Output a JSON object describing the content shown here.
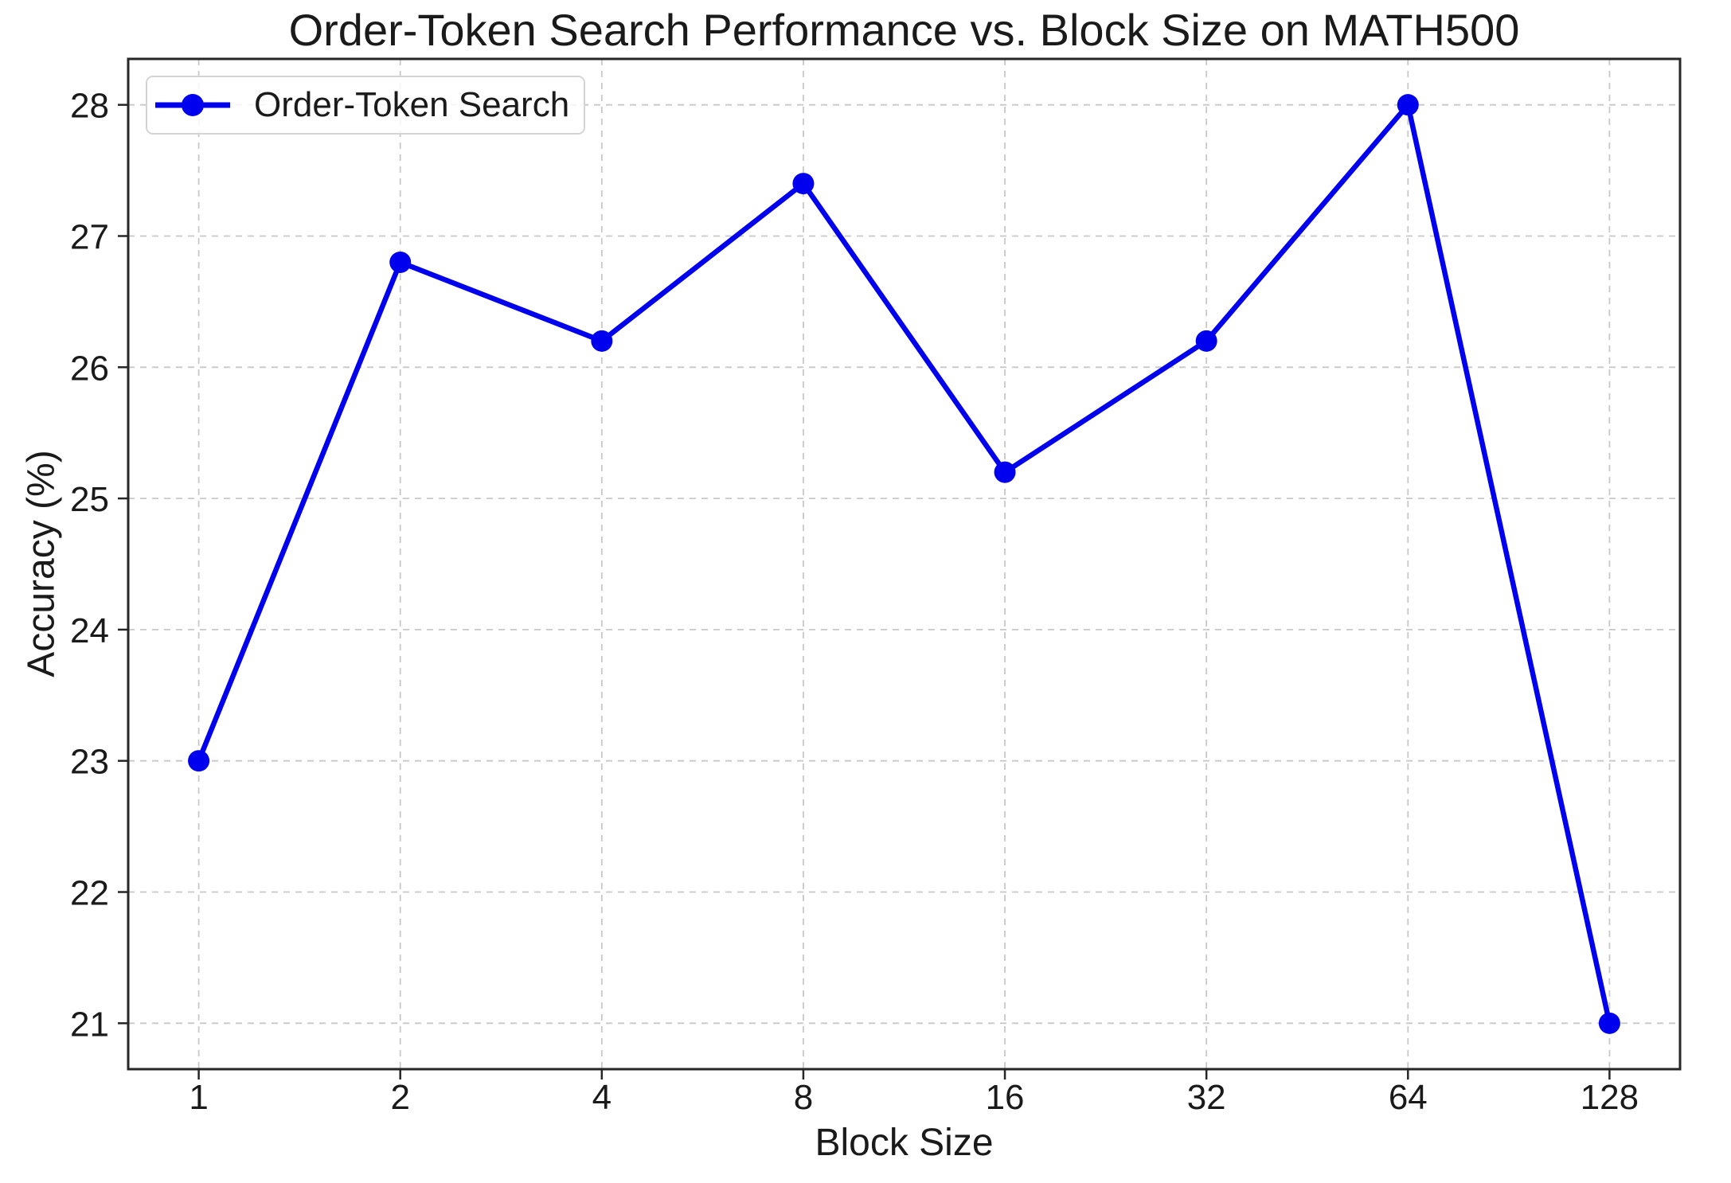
{
  "chart_data": {
    "type": "line",
    "title": "Order-Token Search Performance vs. Block Size on MATH500",
    "xlabel": "Block Size",
    "ylabel": "Accuracy (%)",
    "x_scale": "log2",
    "x": [
      1,
      2,
      4,
      8,
      16,
      32,
      64,
      128
    ],
    "x_tick_labels": [
      "1",
      "2",
      "4",
      "8",
      "16",
      "32",
      "64",
      "128"
    ],
    "y_ticks": [
      21,
      22,
      23,
      24,
      25,
      26,
      27,
      28
    ],
    "y_tick_labels": [
      "21",
      "22",
      "23",
      "24",
      "25",
      "26",
      "27",
      "28"
    ],
    "xlim_log2": [
      -0.35,
      7.35
    ],
    "ylim": [
      20.65,
      28.35
    ],
    "grid": true,
    "legend": {
      "position": "upper left",
      "entries": [
        "Order-Token Search"
      ]
    },
    "series": [
      {
        "name": "Order-Token Search",
        "values": [
          23.0,
          26.8,
          26.2,
          27.4,
          25.2,
          26.2,
          28.0,
          21.0
        ],
        "color": "#0000EE",
        "marker": "circle",
        "line_width": 6.5,
        "marker_radius": 13.5
      }
    ],
    "colors": {
      "grid": "#c8c8c8",
      "spine": "#262626",
      "text": "#1a1a1a",
      "legend_border": "#d4d4d4",
      "background": "#ffffff"
    }
  }
}
